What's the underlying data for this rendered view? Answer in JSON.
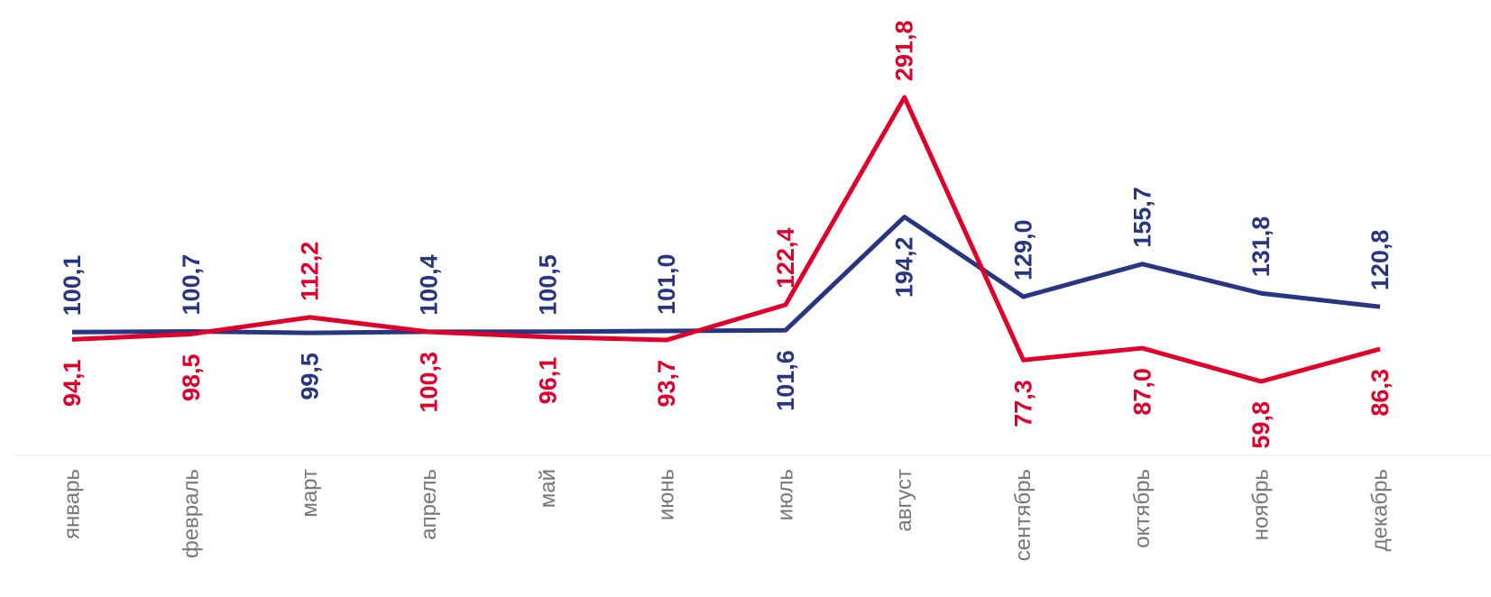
{
  "chart_data": {
    "type": "line",
    "categories": [
      "январь",
      "февраль",
      "март",
      "апрель",
      "май",
      "июнь",
      "июль",
      "август",
      "сентябрь",
      "октябрь",
      "ноябрь",
      "декабрь"
    ],
    "series": [
      {
        "color": "#283583",
        "values": [
          100.1,
          100.7,
          99.5,
          100.4,
          100.5,
          101.0,
          101.6,
          194.2,
          129.0,
          155.7,
          131.8,
          120.8
        ],
        "value_labels": [
          "100,1",
          "100,7",
          "99,5",
          "100,4",
          "100,5",
          "101,0",
          "101,6",
          "194,2",
          "129,0",
          "155,7",
          "131,8",
          "120,8"
        ]
      },
      {
        "color": "#e0002a",
        "values": [
          94.1,
          98.5,
          112.2,
          100.3,
          96.1,
          93.7,
          122.4,
          291.8,
          77.3,
          87.0,
          59.8,
          86.3
        ],
        "value_labels": [
          "94,1",
          "98,5",
          "112,2",
          "100,3",
          "96,1",
          "93,7",
          "122,4",
          "291,8",
          "77,3",
          "87,0",
          "59,8",
          "86,3"
        ]
      }
    ]
  }
}
